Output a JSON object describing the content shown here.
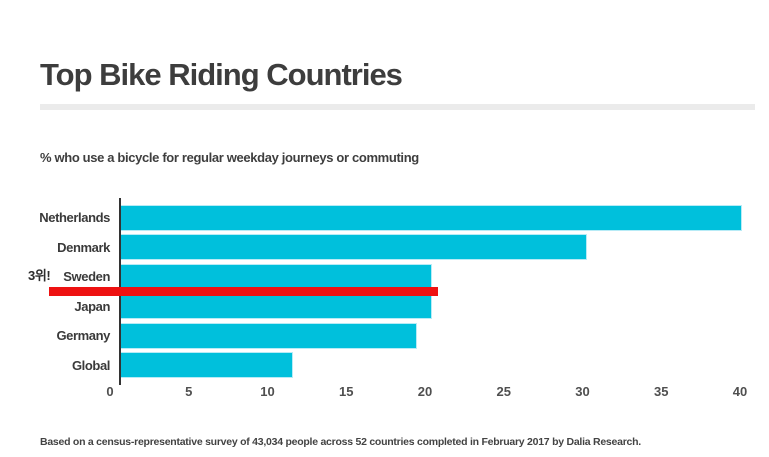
{
  "header": {
    "title": "Top Bike Riding Countries",
    "subtitle": "% who use a bicycle for regular weekday journeys or commuting"
  },
  "annotation": {
    "text": "3위!",
    "meaning": "3rd place! (marks Sweden)",
    "line_color": "#ee1111"
  },
  "footer": {
    "source": "Based on a census-representative survey of 43,034 people across 52 countries completed in February 2017 by Dalia Research."
  },
  "chart_data": {
    "type": "bar",
    "orientation": "horizontal",
    "title": "Top Bike Riding Countries",
    "subtitle": "% who use a bicycle for regular weekday journeys or commuting",
    "categories": [
      "Netherlands",
      "Denmark",
      "Sweden",
      "Japan",
      "Germany",
      "Global"
    ],
    "values": [
      40,
      30,
      20,
      20,
      19,
      11
    ],
    "x_ticks": [
      0,
      5,
      10,
      15,
      20,
      25,
      30,
      35,
      40
    ],
    "xlim": [
      0,
      40
    ],
    "xlabel": "",
    "ylabel": "",
    "grid": false,
    "legend": false,
    "bar_color": "#00c0dc",
    "axis_color": "#333333",
    "annotation": "3위! red underline beneath the Sweden bar"
  }
}
